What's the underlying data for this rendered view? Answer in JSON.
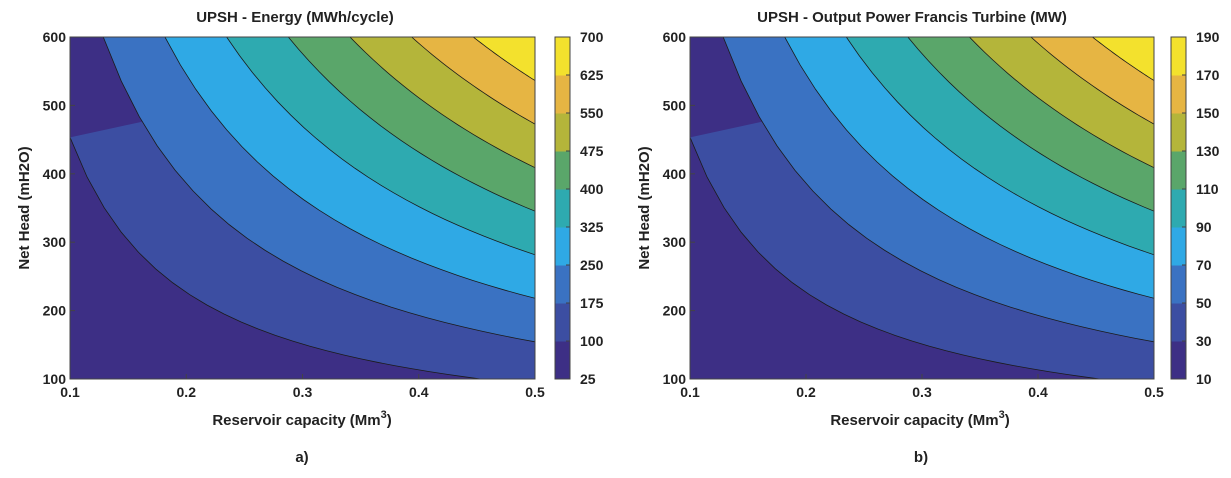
{
  "panels": [
    {
      "caption": "a)",
      "chart_data": {
        "type": "contour",
        "title": "UPSH - Energy (MWh/cycle)",
        "xlabel_main": "Reservoir capacity",
        "xlabel_unit": "(Mm",
        "xlabel_sup": "3",
        "xlabel_close": ")",
        "ylabel": "Net Head (mH2O)",
        "xlim": [
          0.1,
          0.5
        ],
        "ylim": [
          100,
          600
        ],
        "xticks": [
          0.1,
          0.2,
          0.3,
          0.4,
          0.5
        ],
        "xtick_labels": [
          "0.1",
          "0.2",
          "0.3",
          "0.4",
          "0.5"
        ],
        "yticks": [
          100,
          200,
          300,
          400,
          500,
          600
        ],
        "ytick_labels": [
          "100",
          "200",
          "300",
          "400",
          "500",
          "600"
        ],
        "colorbar_ticks": [
          "25",
          "100",
          "175",
          "250",
          "325",
          "400",
          "475",
          "550",
          "625",
          "700"
        ],
        "levels": [
          100,
          175,
          250,
          325,
          400,
          475,
          550,
          625
        ],
        "band_colors": [
          "#3d2f85",
          "#3c4ea2",
          "#3a72c2",
          "#2fa9e5",
          "#2eaab0",
          "#5aa66a",
          "#b4b53a",
          "#e6b543",
          "#f3e12d"
        ],
        "model": "value proportional to reservoir capacity times net head"
      }
    },
    {
      "caption": "b)",
      "chart_data": {
        "type": "contour",
        "title": "UPSH - Output Power Francis Turbine (MW)",
        "xlabel_main": "Reservoir capacity",
        "xlabel_unit": "(Mm",
        "xlabel_sup": "3",
        "xlabel_close": ")",
        "ylabel": "Net Head (mH2O)",
        "xlim": [
          0.1,
          0.5
        ],
        "ylim": [
          100,
          600
        ],
        "xticks": [
          0.1,
          0.2,
          0.3,
          0.4,
          0.5
        ],
        "xtick_labels": [
          "0.1",
          "0.2",
          "0.3",
          "0.4",
          "0.5"
        ],
        "yticks": [
          100,
          200,
          300,
          400,
          500,
          600
        ],
        "ytick_labels": [
          "100",
          "200",
          "300",
          "400",
          "500",
          "600"
        ],
        "colorbar_ticks": [
          "10",
          "30",
          "50",
          "70",
          "90",
          "110",
          "130",
          "150",
          "170",
          "190"
        ],
        "levels": [
          30,
          50,
          70,
          90,
          110,
          130,
          150,
          170
        ],
        "band_colors": [
          "#3d2f85",
          "#3c4ea2",
          "#3a72c2",
          "#2fa9e5",
          "#2eaab0",
          "#5aa66a",
          "#b4b53a",
          "#e6b543",
          "#f3e12d"
        ],
        "model": "value proportional to reservoir capacity times net head"
      }
    }
  ]
}
